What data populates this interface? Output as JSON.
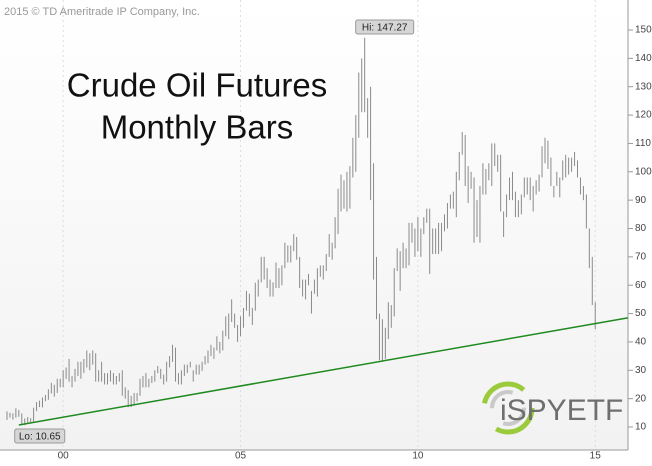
{
  "chart_data": {
    "type": "range_bar",
    "title": "Crude Oil Futures",
    "subtitle": "Monthly Bars",
    "copyright": "2015 © TD Ameritrade IP Company, Inc.",
    "logo": "iSPYETF",
    "hi_label": "Hi: 147.27",
    "lo_label": "Lo: 10.65",
    "hi_index": 121,
    "lo_index": 6,
    "categories": [
      null,
      null,
      null,
      null,
      null,
      null,
      null,
      null,
      null,
      null,
      null,
      null,
      null,
      null,
      null,
      null,
      null,
      null,
      null,
      "00",
      null,
      null,
      null,
      null,
      null,
      null,
      null,
      null,
      null,
      null,
      null,
      null,
      null,
      null,
      null,
      null,
      null,
      null,
      null,
      null,
      null,
      null,
      null,
      null,
      null,
      null,
      null,
      null,
      null,
      null,
      null,
      null,
      null,
      null,
      null,
      null,
      null,
      null,
      null,
      null,
      null,
      null,
      null,
      null,
      null,
      null,
      null,
      null,
      null,
      null,
      null,
      null,
      null,
      null,
      null,
      null,
      null,
      null,
      null,
      "05",
      null,
      null,
      null,
      null,
      null,
      null,
      null,
      null,
      null,
      null,
      null,
      null,
      null,
      null,
      null,
      null,
      null,
      null,
      null,
      null,
      null,
      null,
      null,
      null,
      null,
      null,
      null,
      null,
      null,
      null,
      null,
      null,
      null,
      null,
      null,
      null,
      null,
      null,
      null,
      null,
      null,
      null,
      null,
      null,
      null,
      null,
      null,
      null,
      null,
      null,
      null,
      null,
      null,
      null,
      null,
      null,
      null,
      null,
      null,
      "10",
      null,
      null,
      null,
      null,
      null,
      null,
      null,
      null,
      null,
      null,
      null,
      null,
      null,
      null,
      null,
      null,
      null,
      null,
      null,
      null,
      null,
      null,
      null,
      null,
      null,
      null,
      null,
      null,
      null,
      null,
      null,
      null,
      null,
      null,
      null,
      null,
      null,
      null,
      null,
      null,
      null,
      null,
      null,
      null,
      null,
      null,
      null,
      null,
      null,
      null,
      null,
      null,
      null,
      null,
      null,
      null,
      null,
      null,
      null,
      "15"
    ],
    "series": [
      {
        "name": "low",
        "color": "#8a8a8a",
        "values": [
          12.5,
          13.3,
          12.6,
          13.3,
          13.6,
          11.0,
          10.65,
          11.3,
          11.4,
          11.8,
          15.6,
          17.0,
          16.9,
          19.1,
          19.6,
          21.8,
          20.7,
          22.0,
          24.0,
          24,
          27,
          26,
          24,
          26,
          28,
          27,
          29,
          31,
          30,
          32,
          26,
          26,
          26,
          25,
          25,
          26,
          25,
          25,
          26,
          21,
          20,
          17,
          17,
          17.5,
          19,
          21,
          24,
          24,
          24,
          25.5,
          26,
          29,
          27,
          25,
          26,
          31,
          33,
          26,
          25,
          25,
          28,
          29,
          31,
          26,
          28.5,
          28.5,
          29.8,
          32,
          32.5,
          35,
          34,
          37,
          36,
          37,
          42,
          41,
          47,
          45,
          40,
          42,
          45,
          51,
          49,
          46,
          51,
          56,
          61,
          62,
          59,
          56,
          56,
          59,
          59,
          60,
          66,
          68,
          68,
          72,
          69,
          59,
          56,
          55,
          60,
          50,
          57,
          56,
          63,
          62,
          65,
          70,
          69,
          73,
          78,
          86,
          87,
          86,
          87,
          98,
          100,
          112,
          121,
          121,
          112,
          90,
          62,
          48,
          33.5,
          33,
          34,
          41,
          45,
          49,
          65,
          58,
          66,
          66,
          67,
          75,
          70,
          72,
          70,
          78,
          82,
          64,
          71,
          71,
          71,
          72,
          79,
          80,
          87,
          87,
          84,
          97,
          106,
          95,
          89,
          94,
          75,
          77,
          75,
          92,
          92,
          97,
          95,
          102,
          100,
          86,
          77,
          84,
          90,
          90,
          84,
          84,
          85,
          91,
          92,
          90,
          86,
          92,
          93,
          98,
          103,
          101,
          95,
          91,
          95,
          91,
          97,
          98,
          99,
          100,
          102,
          98,
          92,
          90,
          80,
          66,
          53,
          44.5
        ]
      },
      {
        "name": "high",
        "color": "#8a8a8a",
        "values": [
          15.5,
          15.0,
          14.8,
          16.6,
          16.0,
          14.8,
          13.0,
          13.5,
          13.1,
          16.8,
          18.8,
          19.3,
          20.4,
          21.3,
          23.3,
          25.6,
          24.9,
          27,
          27,
          30,
          31,
          34,
          28,
          30.5,
          33,
          33,
          34,
          37,
          36,
          37,
          36,
          30,
          33,
          29,
          29,
          30,
          29,
          28,
          29,
          30,
          24,
          23,
          21,
          22,
          22,
          27,
          28,
          29,
          27,
          28,
          30,
          31.5,
          30.5,
          28.5,
          33,
          35,
          39,
          38,
          29,
          30,
          32,
          32,
          33,
          30,
          32,
          32,
          33,
          35,
          37,
          39,
          38,
          42,
          40,
          44,
          49,
          50,
          55,
          50,
          46,
          49,
          52,
          58,
          57,
          52,
          60.9,
          62,
          70,
          70,
          66,
          62,
          61,
          68,
          66,
          67,
          75,
          74,
          74,
          78,
          77,
          70,
          62,
          62,
          64,
          58,
          62,
          66,
          67,
          67,
          71,
          78,
          75,
          84,
          94,
          99,
          97,
          100,
          102,
          112,
          120,
          135,
          140,
          147.27,
          126,
          130,
          103,
          70,
          50,
          48,
          45,
          54,
          53,
          66,
          73,
          72,
          75,
          73,
          82,
          82,
          80,
          84,
          80,
          84,
          87,
          87,
          80,
          80,
          82,
          82,
          85,
          89,
          92,
          93,
          100,
          107,
          114,
          113,
          102,
          100,
          98,
          90,
          95,
          103,
          101,
          103,
          110,
          110,
          106,
          106,
          86,
          92,
          98,
          100,
          93,
          90,
          92,
          98,
          98,
          98,
          95,
          97,
          99,
          109,
          112,
          111,
          105,
          95,
          100,
          98,
          104,
          106,
          105,
          105,
          107,
          104,
          98,
          95,
          92,
          80,
          70,
          54
        ]
      }
    ],
    "trend_line": {
      "color": "#1f8a1f",
      "x": [
        4,
        210
      ],
      "values": [
        10.7,
        48.5
      ]
    },
    "ylim": [
      4,
      155
    ],
    "yticks": [
      10,
      20,
      30,
      40,
      50,
      60,
      70,
      80,
      90,
      100,
      110,
      120,
      130,
      140,
      150
    ],
    "grid": true
  }
}
